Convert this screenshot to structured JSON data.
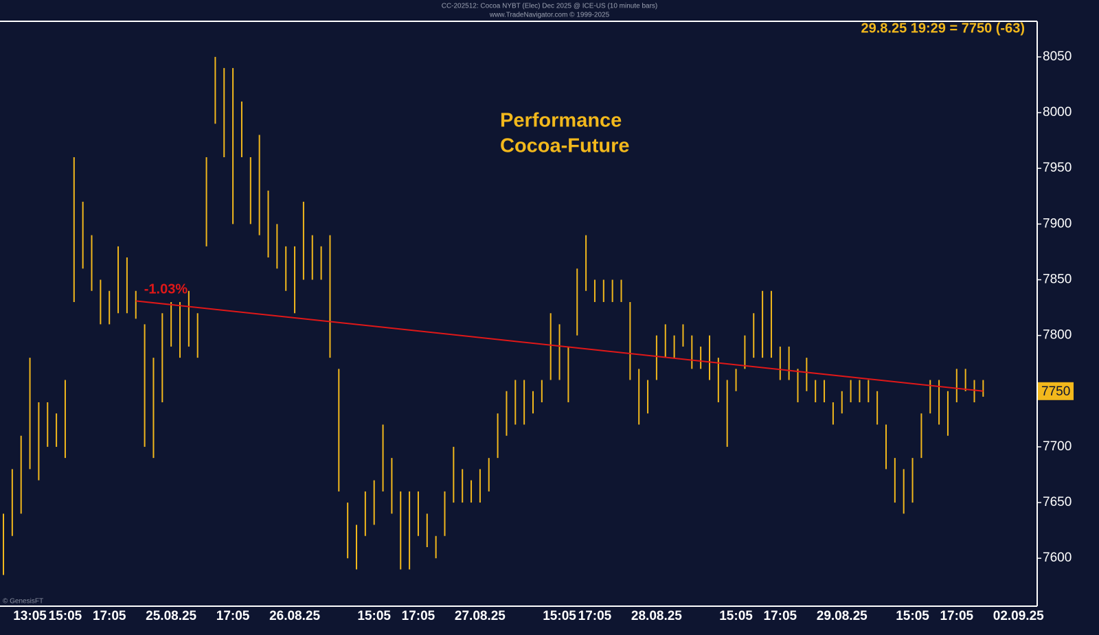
{
  "chart_data": {
    "type": "range-bar",
    "header": [
      "CC-202512: Cocoa NYBT (Elec) Dec 2025 @ ICE-US (10 minute bars)",
      "www.TradeNavigator.com © 1999-2025"
    ],
    "info": "29.8.25 19:29 = 7750 (-63)",
    "annotation": [
      "Performance",
      "Cocoa-Future"
    ],
    "credit": "© GenesisFT",
    "color": "#f2b81c",
    "trend_color": "#e01818",
    "trend_label": "-1.03%",
    "last_price": 7750,
    "ylim": [
      7557,
      8082
    ],
    "yticks": [
      7600,
      7650,
      7700,
      7750,
      7800,
      7850,
      7900,
      7950,
      8000,
      8050
    ],
    "categories": [
      null,
      null,
      null,
      "13:05",
      null,
      null,
      null,
      "15:05",
      null,
      null,
      null,
      null,
      "17:05",
      null,
      null,
      null,
      null,
      null,
      null,
      "25.08.25",
      null,
      null,
      null,
      null,
      null,
      null,
      "17:05",
      null,
      null,
      null,
      null,
      null,
      null,
      "26.08.25",
      null,
      null,
      null,
      null,
      null,
      null,
      null,
      null,
      "15:05",
      null,
      null,
      null,
      null,
      "17:05",
      null,
      null,
      null,
      null,
      null,
      null,
      "27.08.25",
      null,
      null,
      null,
      null,
      null,
      null,
      null,
      null,
      "15:05",
      null,
      null,
      null,
      "17:05",
      null,
      null,
      null,
      null,
      null,
      null,
      "28.08.25",
      null,
      null,
      null,
      null,
      null,
      null,
      null,
      null,
      "15:05",
      null,
      null,
      null,
      null,
      "17:05",
      null,
      null,
      null,
      null,
      null,
      null,
      "29.08.25",
      null,
      null,
      null,
      null,
      null,
      null,
      null,
      "15:05",
      null,
      null,
      null,
      null,
      "17:05",
      null,
      null,
      null,
      null,
      null,
      null,
      "02.09.25"
    ],
    "high": [
      7640,
      7680,
      7710,
      7780,
      7740,
      7740,
      7730,
      7760,
      7960,
      7920,
      7890,
      7850,
      7840,
      7880,
      7870,
      7840,
      7810,
      7780,
      7820,
      7830,
      7830,
      7840,
      7820,
      7960,
      8050,
      8040,
      8040,
      8010,
      7960,
      7980,
      7930,
      7900,
      7880,
      7880,
      7920,
      7890,
      7880,
      7890,
      7770,
      7650,
      7630,
      7660,
      7670,
      7720,
      7690,
      7660,
      7660,
      7660,
      7640,
      7620,
      7660,
      7700,
      7680,
      7670,
      7680,
      7690,
      7730,
      7750,
      7760,
      7760,
      7750,
      7760,
      7820,
      7810,
      7790,
      7860,
      7890,
      7850,
      7850,
      7850,
      7850,
      7830,
      7770,
      7760,
      7800,
      7810,
      7800,
      7810,
      7800,
      7790,
      7800,
      7780,
      7760,
      7770,
      7800,
      7820,
      7840,
      7840,
      7790,
      7790,
      7770,
      7780,
      7760,
      7760,
      7740,
      7750,
      7760,
      7760,
      7760,
      7750,
      7720,
      7690,
      7680,
      7690,
      7730,
      7760,
      7760,
      7750,
      7770,
      7770,
      7760,
      7760,
      null,
      null,
      null,
      null
    ],
    "low": [
      7585,
      7620,
      7640,
      7680,
      7670,
      7700,
      7700,
      7690,
      7830,
      7860,
      7840,
      7810,
      7810,
      7820,
      7820,
      7815,
      7700,
      7690,
      7740,
      7790,
      7780,
      7790,
      7780,
      7880,
      7990,
      7960,
      7900,
      7960,
      7900,
      7890,
      7870,
      7860,
      7840,
      7820,
      7850,
      7850,
      7850,
      7780,
      7660,
      7600,
      7590,
      7620,
      7630,
      7660,
      7640,
      7590,
      7590,
      7620,
      7610,
      7600,
      7620,
      7650,
      7650,
      7650,
      7650,
      7660,
      7690,
      7710,
      7720,
      7720,
      7730,
      7740,
      7760,
      7760,
      7740,
      7800,
      7840,
      7830,
      7830,
      7830,
      7830,
      7760,
      7720,
      7730,
      7760,
      7780,
      7780,
      7790,
      7770,
      7770,
      7760,
      7740,
      7700,
      7750,
      7770,
      7780,
      7780,
      7780,
      7760,
      7760,
      7740,
      7750,
      7740,
      7740,
      7720,
      7730,
      7740,
      7740,
      7740,
      7720,
      7680,
      7650,
      7640,
      7650,
      7690,
      7730,
      7720,
      7710,
      7740,
      7750,
      7740,
      7745,
      null,
      null,
      null,
      null
    ],
    "trend": [
      null,
      null,
      null,
      null,
      null,
      null,
      null,
      null,
      null,
      null,
      null,
      null,
      null,
      null,
      null,
      7831,
      null,
      null,
      null,
      null,
      null,
      null,
      null,
      null,
      null,
      null,
      null,
      null,
      null,
      null,
      null,
      null,
      null,
      null,
      null,
      null,
      null,
      null,
      null,
      null,
      null,
      null,
      null,
      null,
      null,
      null,
      null,
      null,
      null,
      null,
      null,
      null,
      null,
      null,
      null,
      null,
      null,
      null,
      null,
      null,
      null,
      null,
      null,
      null,
      null,
      null,
      null,
      null,
      null,
      null,
      null,
      null,
      null,
      null,
      null,
      null,
      null,
      null,
      null,
      null,
      null,
      null,
      null,
      null,
      null,
      null,
      null,
      null,
      null,
      null,
      null,
      null,
      null,
      null,
      null,
      null,
      null,
      null,
      null,
      null,
      null,
      null,
      null,
      null,
      null,
      null,
      null,
      null,
      null,
      null,
      null,
      7750,
      null,
      null,
      null,
      null
    ]
  }
}
